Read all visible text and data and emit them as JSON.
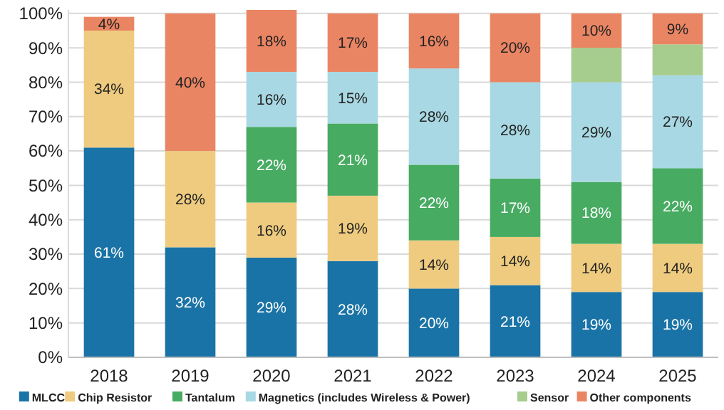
{
  "chart_data": {
    "type": "bar",
    "stacked": true,
    "categories": [
      "2018",
      "2019",
      "2020",
      "2021",
      "2022",
      "2023",
      "2024",
      "2025"
    ],
    "series": [
      {
        "name": "MLCC",
        "color": "#1a73a6",
        "values": [
          61,
          32,
          29,
          28,
          20,
          21,
          19,
          19
        ],
        "value_labels": [
          "61%",
          "32%",
          "29%",
          "28%",
          "20%",
          "21%",
          "19%",
          "19%"
        ]
      },
      {
        "name": "Chip Resistor",
        "color": "#eecb7f",
        "values": [
          34,
          28,
          16,
          19,
          14,
          14,
          14,
          14
        ],
        "value_labels": [
          "34%",
          "28%",
          "16%",
          "19%",
          "14%",
          "14%",
          "14%",
          "14%"
        ]
      },
      {
        "name": "Tantalum",
        "color": "#47ab62",
        "values": [
          null,
          null,
          22,
          21,
          22,
          17,
          18,
          22
        ],
        "value_labels": [
          null,
          null,
          "22%",
          "21%",
          "22%",
          "17%",
          "18%",
          "22%"
        ]
      },
      {
        "name": "Magnetics (includes Wireless & Power)",
        "color": "#a8d8e3",
        "values": [
          null,
          null,
          16,
          15,
          28,
          28,
          29,
          27
        ],
        "value_labels": [
          null,
          null,
          "16%",
          "15%",
          "28%",
          "28%",
          "29%",
          "27%"
        ]
      },
      {
        "name": "Sensor",
        "color": "#a6cc8e",
        "values": [
          null,
          null,
          null,
          null,
          null,
          null,
          10,
          9
        ],
        "value_labels": [
          null,
          null,
          null,
          null,
          null,
          null,
          null,
          null
        ]
      },
      {
        "name": "Other components",
        "color": "#ea8563",
        "values": [
          4,
          40,
          18,
          17,
          16,
          20,
          10,
          9
        ],
        "value_labels": [
          "4%",
          "40%",
          "18%",
          "17%",
          "16%",
          "20%",
          "10%",
          "9%"
        ]
      }
    ],
    "ylim": [
      0,
      101
    ],
    "yticks": [
      {
        "value": 0,
        "label": "0%"
      },
      {
        "value": 10,
        "label": "10%"
      },
      {
        "value": 20,
        "label": "20%"
      },
      {
        "value": 30,
        "label": "30%"
      },
      {
        "value": 40,
        "label": "40%"
      },
      {
        "value": 50,
        "label": "50%"
      },
      {
        "value": 60,
        "label": "60%"
      },
      {
        "value": 70,
        "label": "70%"
      },
      {
        "value": 80,
        "label": "80%"
      },
      {
        "value": 90,
        "label": "90%"
      },
      {
        "value": 100,
        "label": "100%"
      }
    ],
    "grid": "y",
    "legend": "bottom"
  }
}
